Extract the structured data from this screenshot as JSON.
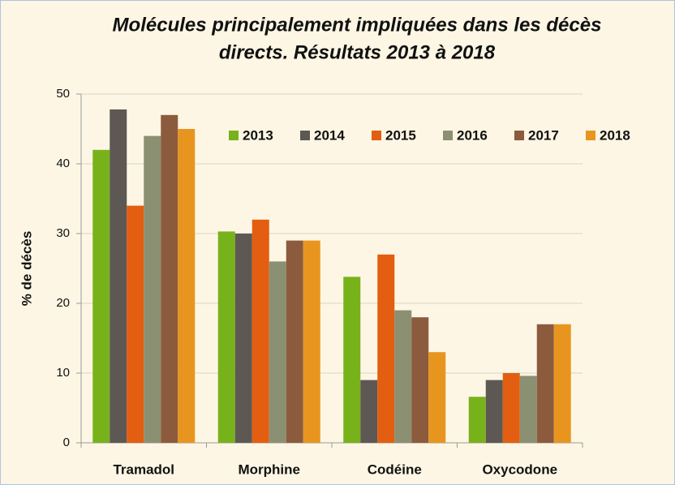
{
  "chart_data": {
    "type": "bar",
    "title": [
      "Molécules principalement impliquées dans les décès",
      "directs. Résultats 2013 à 2018"
    ],
    "ylabel": "% de décès",
    "categories": [
      "Tramadol",
      "Morphine",
      "Codéine",
      "Oxycodone"
    ],
    "series": [
      {
        "name": "2013",
        "color": "#78b21a",
        "values": [
          42,
          30.3,
          23.8,
          6.6
        ]
      },
      {
        "name": "2014",
        "color": "#5d5853",
        "values": [
          47.8,
          30,
          9,
          9
        ]
      },
      {
        "name": "2015",
        "color": "#e35e10",
        "values": [
          34,
          32,
          27,
          10
        ]
      },
      {
        "name": "2016",
        "color": "#8b9072",
        "values": [
          44,
          26,
          19,
          9.6
        ]
      },
      {
        "name": "2017",
        "color": "#8c5b3d",
        "values": [
          47,
          29,
          18,
          17
        ]
      },
      {
        "name": "2018",
        "color": "#e8951f",
        "values": [
          45,
          29,
          13,
          17
        ]
      }
    ],
    "ylim": [
      0,
      50
    ],
    "yticks": [
      0,
      10,
      20,
      30,
      40,
      50
    ],
    "grid": true,
    "legend": "top-right"
  }
}
